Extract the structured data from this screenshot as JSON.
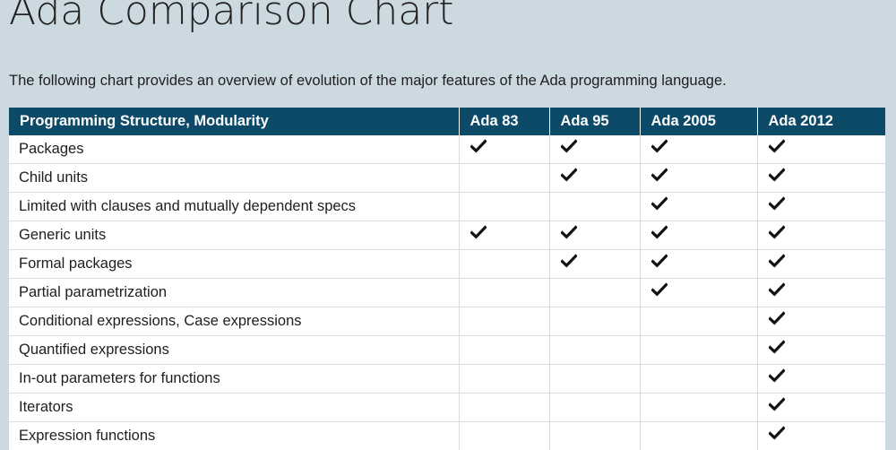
{
  "page": {
    "title": "Ada Comparison Chart",
    "intro": "The following chart provides an overview of evolution of the major features of the Ada programming language."
  },
  "table": {
    "columns": [
      "Programming Structure, Modularity",
      "Ada 83",
      "Ada 95",
      "Ada 2005",
      "Ada 2012"
    ],
    "check_icon": "checkmark-icon",
    "rows": [
      {
        "feature": "Packages",
        "support": [
          true,
          true,
          true,
          true
        ]
      },
      {
        "feature": "Child units",
        "support": [
          false,
          true,
          true,
          true
        ]
      },
      {
        "feature": "Limited with clauses and mutually dependent specs",
        "support": [
          false,
          false,
          true,
          true
        ]
      },
      {
        "feature": "Generic units",
        "support": [
          true,
          true,
          true,
          true
        ]
      },
      {
        "feature": "Formal packages",
        "support": [
          false,
          true,
          true,
          true
        ]
      },
      {
        "feature": "Partial parametrization",
        "support": [
          false,
          false,
          true,
          true
        ]
      },
      {
        "feature": "Conditional expressions, Case expressions",
        "support": [
          false,
          false,
          false,
          true
        ]
      },
      {
        "feature": "Quantified expressions",
        "support": [
          false,
          false,
          false,
          true
        ]
      },
      {
        "feature": "In-out parameters for functions",
        "support": [
          false,
          false,
          false,
          true
        ]
      },
      {
        "feature": "Iterators",
        "support": [
          false,
          false,
          false,
          true
        ]
      },
      {
        "feature": "Expression functions",
        "support": [
          false,
          false,
          false,
          true
        ]
      }
    ]
  },
  "colors": {
    "background": "#cdd9e0",
    "header": "#0c4a68",
    "check": "#111111"
  }
}
